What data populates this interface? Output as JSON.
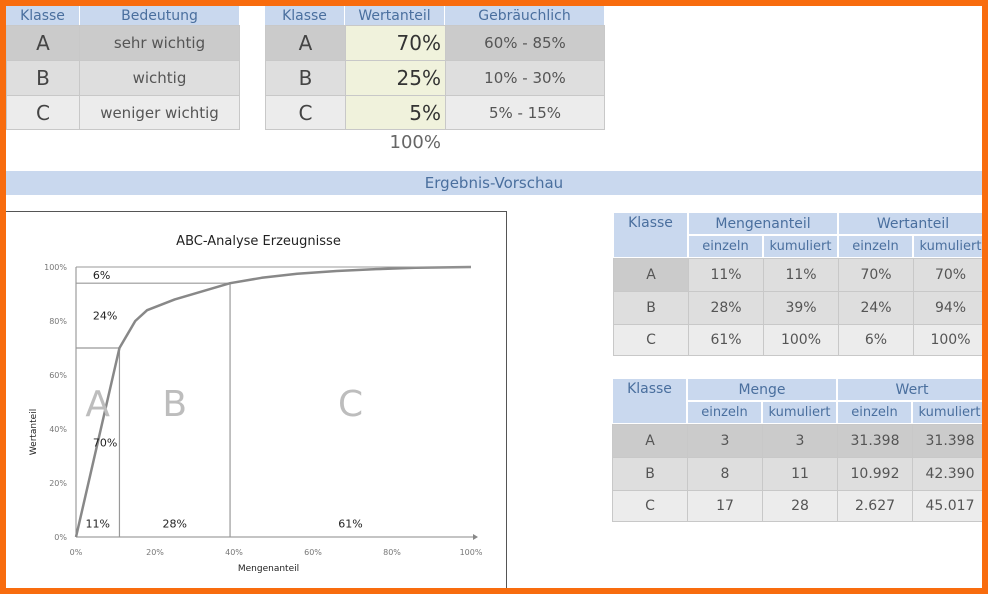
{
  "importance_table": {
    "headers": [
      "Klasse",
      "Bedeutung"
    ],
    "rows": [
      {
        "klasse": "A",
        "bedeutung": "sehr wichtig"
      },
      {
        "klasse": "B",
        "bedeutung": "wichtig"
      },
      {
        "klasse": "C",
        "bedeutung": "weniger wichtig"
      }
    ]
  },
  "share_table": {
    "headers": [
      "Klasse",
      "Wertanteil",
      "Gebräuchlich"
    ],
    "rows": [
      {
        "klasse": "A",
        "wertanteil": "70%",
        "gebraeuchlich": "60%  - 85%"
      },
      {
        "klasse": "B",
        "wertanteil": "25%",
        "gebraeuchlich": "10%  - 30%"
      },
      {
        "klasse": "C",
        "wertanteil": "5%",
        "gebraeuchlich": "5%  - 15%"
      }
    ],
    "total": "100%"
  },
  "preview_band": "Ergebnis-Vorschau",
  "result_share": {
    "header_klasse": "Klasse",
    "header_group1": "Mengenanteil",
    "header_group2": "Wertanteil",
    "sub_headers": [
      "einzeln",
      "kumuliert",
      "einzeln",
      "kumuliert"
    ],
    "rows": [
      {
        "klasse": "A",
        "cells": [
          "11%",
          "11%",
          "70%",
          "70%"
        ]
      },
      {
        "klasse": "B",
        "cells": [
          "28%",
          "39%",
          "24%",
          "94%"
        ]
      },
      {
        "klasse": "C",
        "cells": [
          "61%",
          "100%",
          "6%",
          "100%"
        ]
      }
    ]
  },
  "result_abs": {
    "header_klasse": "Klasse",
    "header_group1": "Menge",
    "header_group2": "Wert",
    "sub_headers": [
      "einzeln",
      "kumuliert",
      "einzeln",
      "kumuliert"
    ],
    "rows": [
      {
        "klasse": "A",
        "cells": [
          "3",
          "3",
          "31.398",
          "31.398"
        ]
      },
      {
        "klasse": "B",
        "cells": [
          "8",
          "11",
          "10.992",
          "42.390"
        ]
      },
      {
        "klasse": "C",
        "cells": [
          "17",
          "28",
          "2.627",
          "45.017"
        ]
      }
    ]
  },
  "chart_data": {
    "type": "line",
    "title": "ABC-Analyse Erzeugnisse",
    "xlabel": "Mengenanteil",
    "ylabel": "Wertanteil",
    "x_ticks": [
      "0%",
      "20%",
      "40%",
      "60%",
      "80%",
      "100%"
    ],
    "y_ticks": [
      "0%",
      "20%",
      "40%",
      "60%",
      "80%",
      "100%"
    ],
    "xlim": [
      0,
      100
    ],
    "ylim": [
      0,
      100
    ],
    "curve": {
      "x": [
        0,
        11,
        15,
        18,
        25,
        32,
        39,
        47,
        56,
        66,
        76,
        86,
        100
      ],
      "y": [
        0,
        70,
        80,
        84,
        88,
        91,
        94,
        96,
        97.5,
        98.5,
        99.2,
        99.7,
        100
      ]
    },
    "boundaries": [
      {
        "x": 11,
        "y": 70
      },
      {
        "x": 39,
        "y": 94
      }
    ],
    "class_labels": [
      {
        "text": "A",
        "x": 5.5,
        "y": 50
      },
      {
        "text": "B",
        "x": 25,
        "y": 50
      },
      {
        "text": "C",
        "x": 69.5,
        "y": 50
      }
    ],
    "value_share_labels": [
      {
        "text": "6%",
        "x": 3,
        "y": 97
      },
      {
        "text": "24%",
        "x": 3,
        "y": 82
      },
      {
        "text": "70%",
        "x": 3,
        "y": 35
      }
    ],
    "quantity_share_labels": [
      {
        "text": "11%",
        "x": 5.5,
        "y": 5
      },
      {
        "text": "28%",
        "x": 25,
        "y": 5
      },
      {
        "text": "61%",
        "x": 69.5,
        "y": 5
      }
    ],
    "colors": {
      "line": "#888888",
      "class_letter": "#bdbdbd"
    }
  }
}
